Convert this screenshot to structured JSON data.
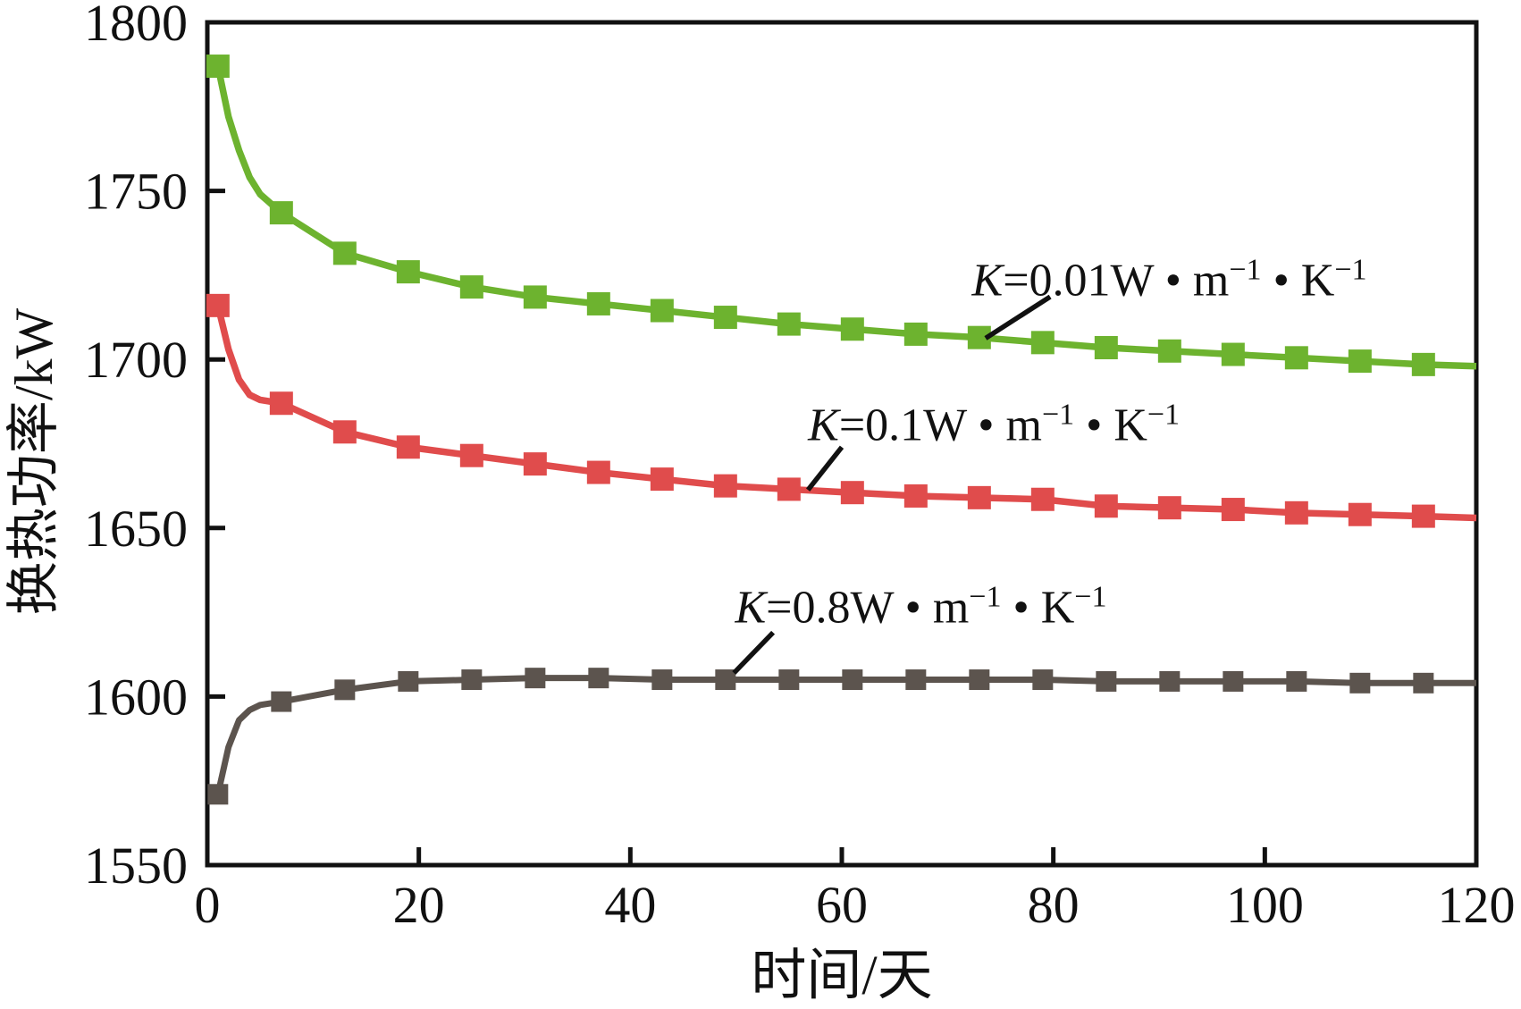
{
  "figure": {
    "background": "#ffffff",
    "axis_color": "#111111"
  },
  "chart_data": {
    "type": "line",
    "title": "",
    "xlabel": "时间/天",
    "ylabel": "换热功率/kW",
    "xlim": [
      0,
      120
    ],
    "ylim": [
      1550,
      1800
    ],
    "xticks": [
      0,
      20,
      40,
      60,
      80,
      100,
      120
    ],
    "yticks": [
      1550,
      1600,
      1650,
      1700,
      1750,
      1800
    ],
    "grid": false,
    "legend_position": "inline-annotations",
    "series": [
      {
        "id": "k-0.01",
        "name": "K=0.01 W·m−1·K−1",
        "color": "#6DB32F",
        "marker": "square",
        "marker_size": 26,
        "line_width": 7.5,
        "marker_days": [
          1,
          7,
          13,
          19,
          25,
          31,
          37,
          43,
          49,
          55,
          61,
          67,
          73,
          79,
          85,
          91,
          97,
          103,
          109,
          115
        ],
        "marker_kw": [
          1787,
          1743.5,
          1731.5,
          1726,
          1721.5,
          1718.5,
          1716.5,
          1714.5,
          1712.5,
          1710.5,
          1709,
          1707.5,
          1706.5,
          1705,
          1703.5,
          1702.5,
          1701.5,
          1700.5,
          1699.5,
          1698.5
        ],
        "line_days": [
          1,
          2,
          3,
          4,
          5,
          7,
          13,
          19,
          25,
          31,
          37,
          43,
          49,
          55,
          61,
          67,
          73,
          79,
          85,
          91,
          97,
          103,
          109,
          115,
          120
        ],
        "line_kw": [
          1787,
          1772,
          1762,
          1754,
          1749,
          1743.5,
          1731.5,
          1726,
          1721.5,
          1718.5,
          1716.5,
          1714.5,
          1712.5,
          1710.5,
          1709,
          1707.5,
          1706.5,
          1705,
          1703.5,
          1702.5,
          1701.5,
          1700.5,
          1699.5,
          1698.5,
          1698
        ]
      },
      {
        "id": "k-0.1",
        "name": "K=0.1 W·m−1·K−1",
        "color": "#E04C4C",
        "marker": "square",
        "marker_size": 26,
        "line_width": 7.5,
        "marker_days": [
          1,
          7,
          13,
          19,
          25,
          31,
          37,
          43,
          49,
          55,
          61,
          67,
          73,
          79,
          85,
          91,
          97,
          103,
          109,
          115
        ],
        "marker_kw": [
          1716,
          1687,
          1678.5,
          1674,
          1671.5,
          1669,
          1666.5,
          1664.5,
          1662.5,
          1661.5,
          1660.5,
          1659.5,
          1659,
          1658.5,
          1656.5,
          1656,
          1655.5,
          1654.5,
          1654,
          1653.5
        ],
        "line_days": [
          1,
          2,
          3,
          4,
          5,
          7,
          13,
          19,
          25,
          31,
          37,
          43,
          49,
          55,
          61,
          67,
          73,
          79,
          85,
          91,
          97,
          103,
          109,
          115,
          120
        ],
        "line_kw": [
          1716,
          1703,
          1694,
          1689.5,
          1688,
          1687,
          1678.5,
          1674,
          1671.5,
          1669,
          1666.5,
          1664.5,
          1662.5,
          1661.5,
          1660.5,
          1659.5,
          1659,
          1658.5,
          1656.5,
          1656,
          1655.5,
          1654.5,
          1654,
          1653.5,
          1653
        ]
      },
      {
        "id": "k-0.8",
        "name": "K=0.8 W·m−1·K−1",
        "color": "#5C544E",
        "marker": "square",
        "marker_size": 23,
        "line_width": 7,
        "marker_days": [
          1,
          7,
          13,
          19,
          25,
          31,
          37,
          43,
          49,
          55,
          61,
          67,
          73,
          79,
          85,
          91,
          97,
          103,
          109,
          115
        ],
        "marker_kw": [
          1571,
          1598.5,
          1602,
          1604.5,
          1605,
          1605.5,
          1605.5,
          1605,
          1605,
          1605,
          1605,
          1605,
          1605,
          1605,
          1604.5,
          1604.5,
          1604.5,
          1604.5,
          1604,
          1604
        ],
        "line_days": [
          1,
          2,
          3,
          4,
          5,
          7,
          13,
          19,
          25,
          31,
          37,
          43,
          49,
          55,
          61,
          67,
          73,
          79,
          85,
          91,
          97,
          103,
          109,
          115,
          120
        ],
        "line_kw": [
          1571,
          1585,
          1593,
          1596,
          1597.5,
          1598.5,
          1602,
          1604.5,
          1605,
          1605.5,
          1605.5,
          1605,
          1605,
          1605,
          1605,
          1605,
          1605,
          1605,
          1604.5,
          1604.5,
          1604.5,
          1604.5,
          1604,
          1604,
          1604
        ]
      }
    ],
    "annotations": [
      {
        "id": "k-0.01",
        "parts": [
          {
            "t": "K",
            "italic": true
          },
          {
            "t": "=0.01W"
          },
          {
            "t": " • "
          },
          {
            "t": "m"
          },
          {
            "t": "−1",
            "sup": true
          },
          {
            "t": " • "
          },
          {
            "t": "K"
          },
          {
            "t": "−1",
            "sup": true
          }
        ],
        "day": 72.3,
        "kw": 1719,
        "leader": {
          "from": [
            79.7,
            1718.6
          ],
          "to": [
            73.6,
            1706.3
          ]
        }
      },
      {
        "id": "k-0.1",
        "parts": [
          {
            "t": "K",
            "italic": true
          },
          {
            "t": "=0.1W"
          },
          {
            "t": " • "
          },
          {
            "t": "m"
          },
          {
            "t": "−1",
            "sup": true
          },
          {
            "t": " • "
          },
          {
            "t": "K"
          },
          {
            "t": "−1",
            "sup": true
          }
        ],
        "day": 56.8,
        "kw": 1676,
        "leader": {
          "from": [
            60.0,
            1674.0
          ],
          "to": [
            56.8,
            1661.3
          ]
        }
      },
      {
        "id": "k-0.8",
        "parts": [
          {
            "t": "K",
            "italic": true
          },
          {
            "t": "=0.8W"
          },
          {
            "t": " • "
          },
          {
            "t": "m"
          },
          {
            "t": "−1",
            "sup": true
          },
          {
            "t": " • "
          },
          {
            "t": "K"
          },
          {
            "t": "−1",
            "sup": true
          }
        ],
        "day": 49.9,
        "kw": 1622,
        "leader": {
          "from": [
            53.5,
            1619.0
          ],
          "to": [
            49.8,
            1607.0
          ]
        }
      }
    ]
  }
}
